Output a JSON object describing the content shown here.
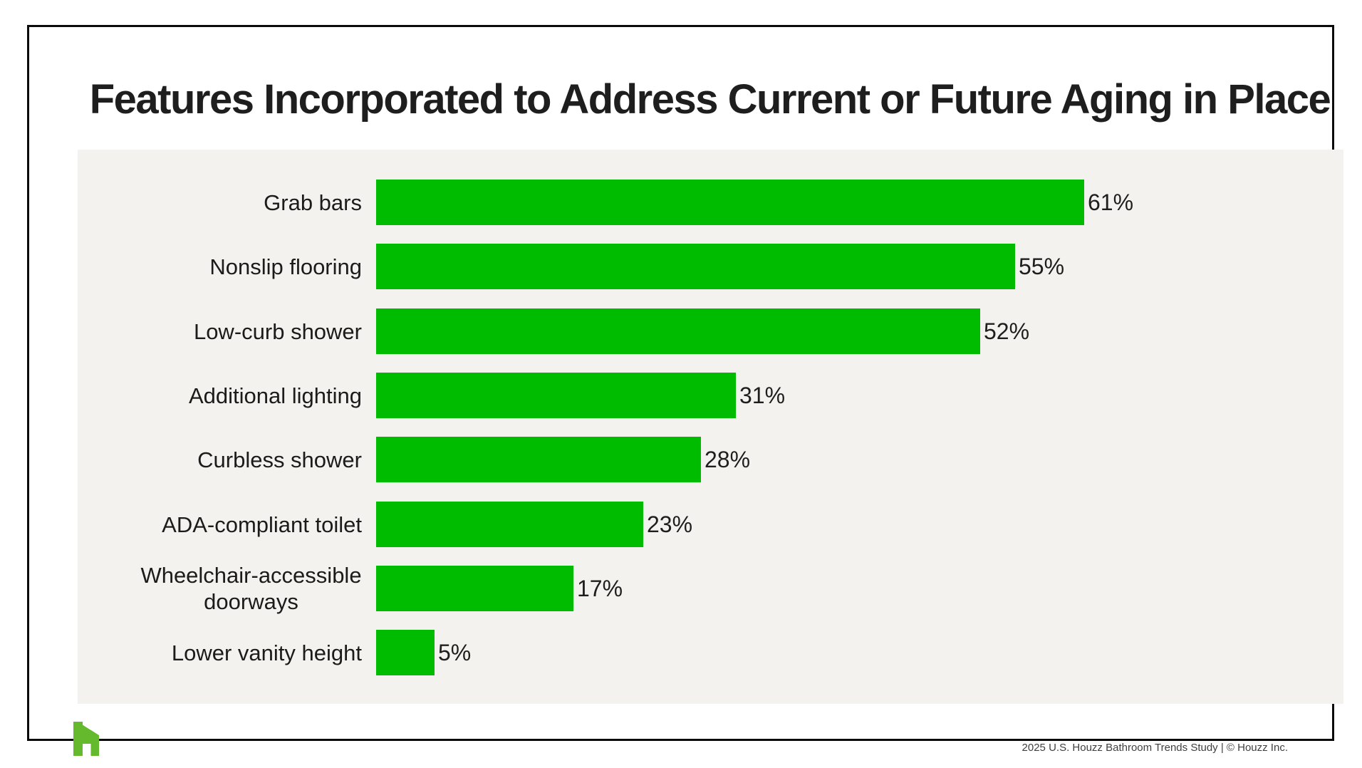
{
  "title": "Features Incorporated to Address Current or Future Aging in Place",
  "chart_data": {
    "type": "bar",
    "orientation": "horizontal",
    "title": "Features Incorporated to Address Current or Future Aging in Place",
    "categories": [
      "Grab bars",
      "Nonslip flooring",
      "Low-curb shower",
      "Additional lighting",
      "Curbless shower",
      "ADA-compliant toilet",
      "Wheelchair-accessible doorways",
      "Lower vanity height"
    ],
    "values": [
      61,
      55,
      52,
      31,
      28,
      23,
      17,
      5
    ],
    "value_labels": [
      "61%",
      "55%",
      "52%",
      "31%",
      "28%",
      "23%",
      "17%",
      "5%"
    ],
    "unit": "%",
    "xlabel": "",
    "ylabel": "",
    "xlim": [
      0,
      61
    ],
    "grid": false,
    "axes_hidden": true,
    "legend": "none",
    "data_labels_position": "outside-end",
    "bar_color": "#00bc00",
    "panel_background": "#f4f2ee",
    "label_color": "#1b1b1b"
  },
  "footer": {
    "credit": "2025 U.S. Houzz Bathroom Trends Study  |  © Houzz Inc.",
    "logo": "houzz-logo",
    "logo_color": "#64b92d"
  }
}
